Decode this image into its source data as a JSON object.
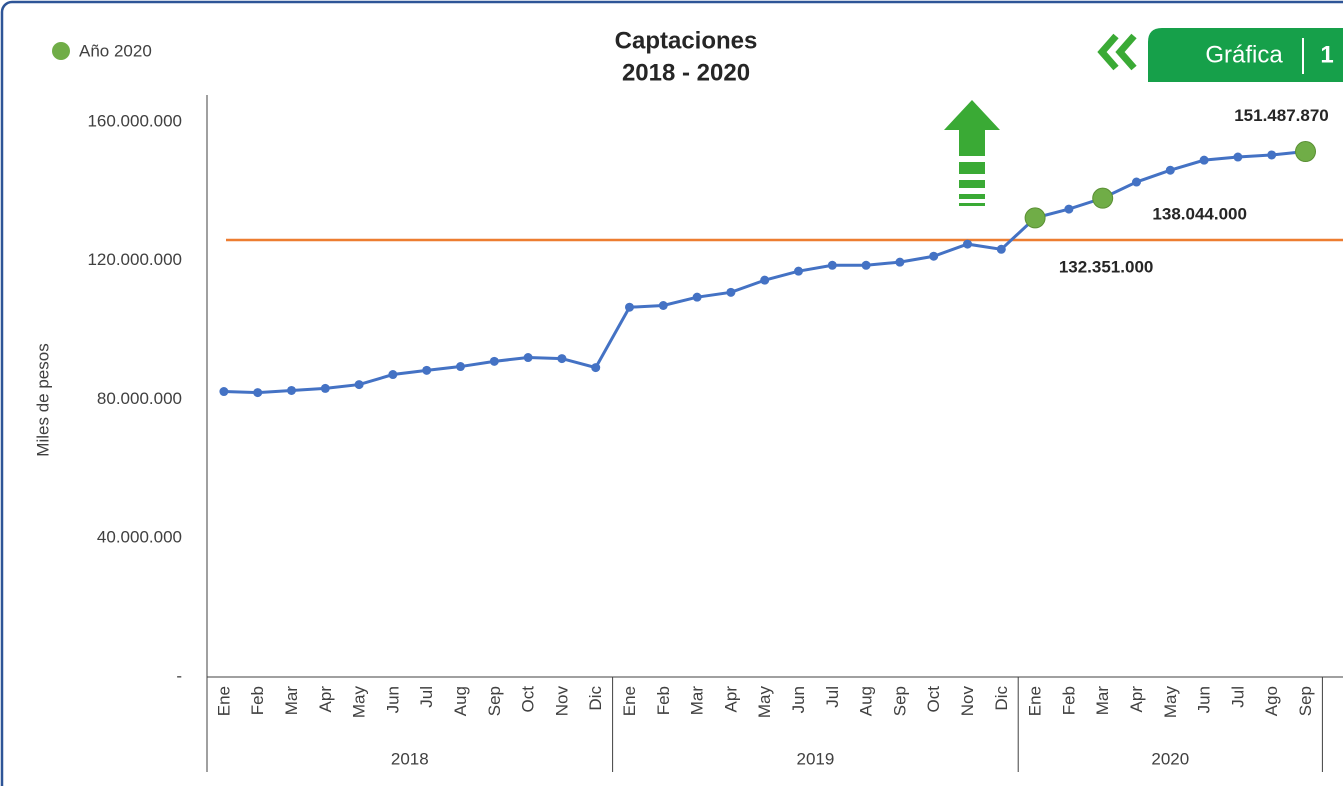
{
  "chart_data": {
    "type": "line",
    "title": [
      "Captaciones",
      "2018 - 2020"
    ],
    "badge": {
      "label": "Gráfica",
      "number": "1"
    },
    "y_label": "Miles de pesos",
    "categories": [
      "Ene",
      "Feb",
      "Mar",
      "Apr",
      "May",
      "Jun",
      "Jul",
      "Aug",
      "Sep",
      "Oct",
      "Nov",
      "Dic",
      "Ene",
      "Feb",
      "Mar",
      "Apr",
      "May",
      "Jun",
      "Jul",
      "Aug",
      "Sep",
      "Oct",
      "Nov",
      "Dic",
      "Ene",
      "Feb",
      "Mar",
      "Apr",
      "May",
      "Jun",
      "Jul",
      "Ago",
      "Sep"
    ],
    "groups": [
      {
        "label": "2018",
        "span": 12
      },
      {
        "label": "2019",
        "span": 12
      },
      {
        "label": "2020",
        "span": 9
      }
    ],
    "values": [
      82300000,
      82000000,
      82600000,
      83200000,
      84300000,
      87200000,
      88400000,
      89500000,
      91000000,
      92100000,
      91800000,
      89200000,
      106600000,
      107100000,
      109500000,
      110900000,
      114400000,
      117000000,
      118700000,
      118700000,
      119600000,
      121300000,
      124800000,
      123300000,
      132351000,
      134900000,
      138044000,
      142700000,
      146100000,
      149000000,
      149900000,
      150500000,
      151487870
    ],
    "value_labels": [
      null,
      null,
      null,
      null,
      null,
      null,
      null,
      null,
      null,
      null,
      null,
      null,
      null,
      null,
      null,
      null,
      null,
      null,
      null,
      null,
      null,
      null,
      null,
      null,
      "132.351.000",
      null,
      "138.044.000",
      null,
      null,
      null,
      null,
      null,
      "151.487.870"
    ],
    "color": "#4472c4",
    "highlight": {
      "name": "Año 2020",
      "color": "#70ad47",
      "indices": [
        24,
        26,
        32
      ]
    },
    "reference_line": {
      "value": 126000000,
      "color": "#ed7d31"
    },
    "ylim": [
      0,
      160000000
    ],
    "yticks": [
      {
        "value": 0,
        "label": "-"
      },
      {
        "value": 40000000,
        "label": "40.000.000"
      },
      {
        "value": 80000000,
        "label": "80.000.000"
      },
      {
        "value": 120000000,
        "label": "120.000.000"
      },
      {
        "value": 160000000,
        "label": "160.000.000"
      }
    ]
  }
}
